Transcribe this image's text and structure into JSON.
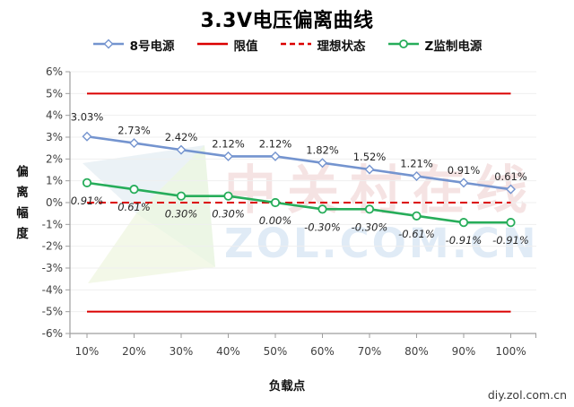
{
  "title": "3.3V电压偏离曲线",
  "footer": "diy.zol.com.cn",
  "colors": {
    "series_blue": "#7494CF",
    "series_green": "#27AD5A",
    "limit_red": "#DB0000",
    "grid": "#EFEFEF",
    "axis": "#9E9E9E",
    "tick_text": "#3F3F3F",
    "label_text": "#262626",
    "title_text": "#000000",
    "footer_text": "#3A3A3A"
  },
  "legend": {
    "items": [
      {
        "label": "8号电源",
        "marker": "diamond",
        "style": "solid",
        "color": "#7494CF"
      },
      {
        "label": "限值",
        "marker": "none",
        "style": "solid",
        "color": "#DB0000"
      },
      {
        "label": "理想状态",
        "marker": "none",
        "style": "dashed",
        "color": "#DB0000"
      },
      {
        "label": "Z监制电源",
        "marker": "circle",
        "style": "solid",
        "color": "#27AD5A"
      }
    ]
  },
  "watermark": {
    "logo": "zol-z-logo",
    "line1": "中关村在线",
    "line2": "ZOL.COM.CN",
    "logo_blue": "#D7E5EE",
    "logo_green": "#D9EECB",
    "logo_yellow": "#EAF3D6",
    "text_red": "#EDC9C9",
    "text_blue": "#C7DCF0"
  },
  "chart_data": {
    "type": "line",
    "title": "3.3V电压偏离曲线",
    "xlabel": "负载点",
    "ylabel": "偏离幅度",
    "ylabel_chars": [
      "偏",
      "离",
      "幅",
      "度"
    ],
    "categories": [
      "10%",
      "20%",
      "30%",
      "40%",
      "50%",
      "60%",
      "70%",
      "80%",
      "90%",
      "100%"
    ],
    "ylim": [
      -6,
      6
    ],
    "ytick_step": 1,
    "ytick_labels": [
      "6%",
      "5%",
      "4%",
      "3%",
      "2%",
      "1%",
      "0%",
      "-1%",
      "-2%",
      "-3%",
      "-4%",
      "-5%",
      "-6%"
    ],
    "grid": true,
    "legend_position": "top",
    "series": [
      {
        "name": "8号电源",
        "values": [
          3.03,
          2.73,
          2.42,
          2.12,
          2.12,
          1.82,
          1.52,
          1.21,
          0.91,
          0.61
        ],
        "labels": [
          "3.03%",
          "2.73%",
          "2.42%",
          "2.12%",
          "2.12%",
          "1.82%",
          "1.52%",
          "1.21%",
          "0.91%",
          "0.61%"
        ],
        "color": "#7494CF",
        "marker": "diamond",
        "label_position": "above",
        "label_italic": false
      },
      {
        "name": "Z监制电源",
        "values": [
          0.91,
          0.61,
          0.3,
          0.3,
          0.0,
          -0.3,
          -0.3,
          -0.61,
          -0.91,
          -0.91
        ],
        "labels": [
          "0.91%",
          "0.61%",
          "0.30%",
          "0.30%",
          "0.00%",
          "-0.30%",
          "-0.30%",
          "-0.61%",
          "-0.91%",
          "-0.91%"
        ],
        "color": "#27AD5A",
        "marker": "circle",
        "label_position": "below",
        "label_italic": true
      }
    ],
    "ref_lines": [
      {
        "name": "限值",
        "values": [
          5,
          -5
        ],
        "style": "solid",
        "color": "#DB0000"
      },
      {
        "name": "理想状态",
        "values": [
          0
        ],
        "style": "dashed",
        "color": "#DB0000"
      }
    ]
  }
}
